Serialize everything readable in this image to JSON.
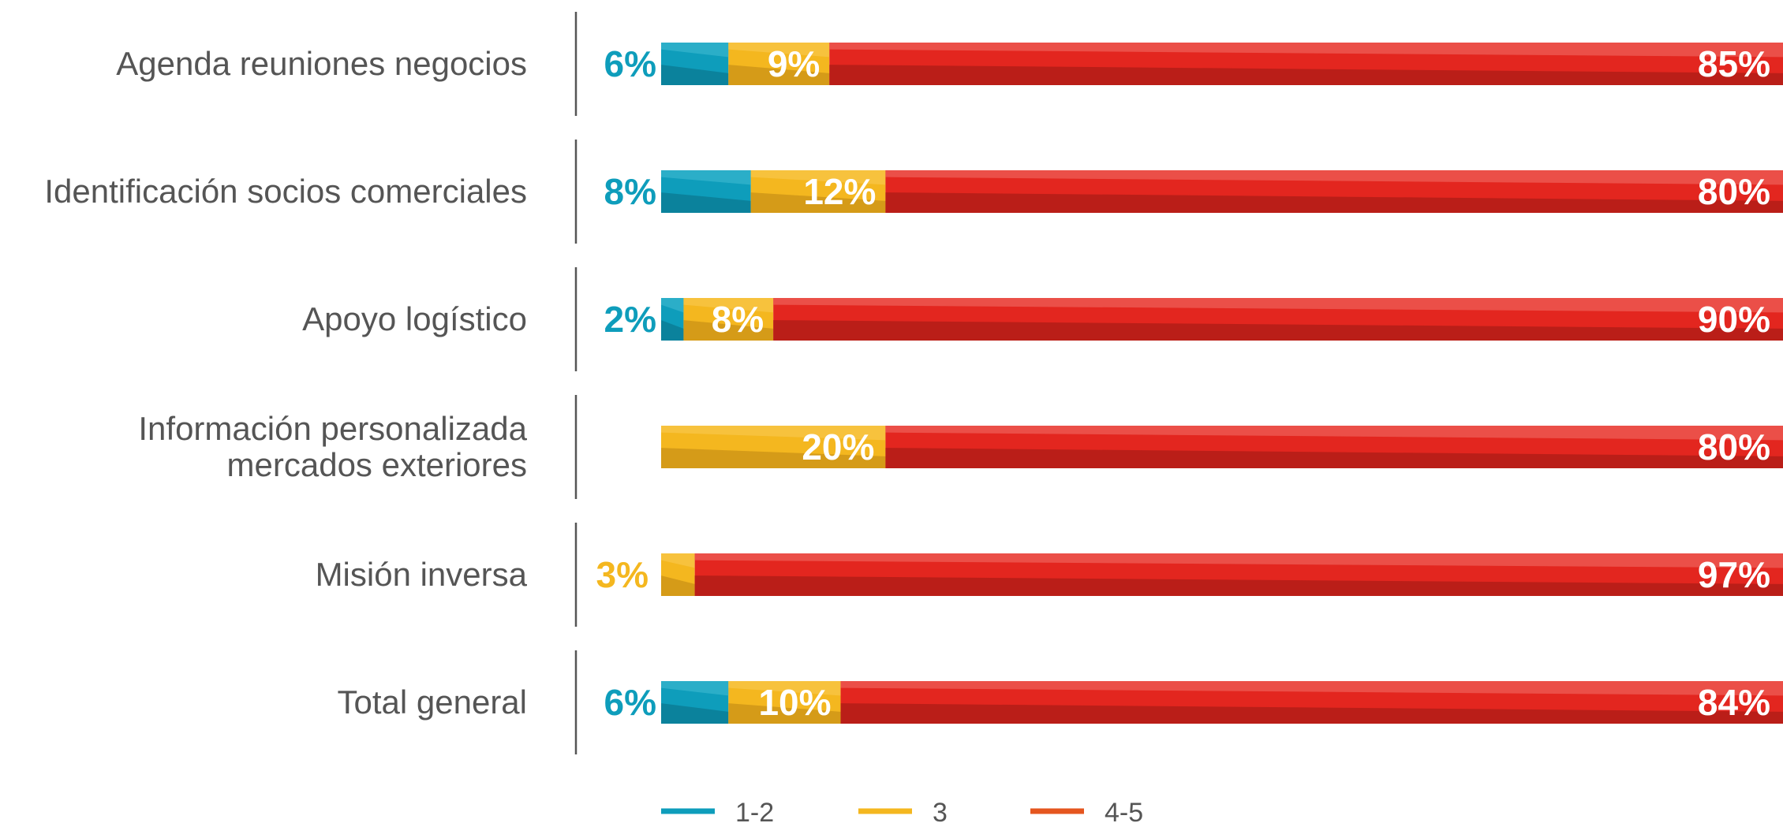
{
  "chart_data": {
    "type": "bar",
    "orientation": "horizontal",
    "stacked": true,
    "normalized": true,
    "title": "",
    "xlabel": "",
    "ylabel": "",
    "xlim": [
      0,
      100
    ],
    "categories": [
      [
        "Agenda reuniones negocios"
      ],
      [
        "Identificación socios comerciales"
      ],
      [
        "Apoyo logístico"
      ],
      [
        "Información personalizada",
        "mercados exteriores"
      ],
      [
        "Misión inversa"
      ],
      [
        "Total general"
      ]
    ],
    "series": [
      {
        "name": "1-2",
        "color": "#0e9dbb",
        "values": [
          6,
          8,
          2,
          0,
          0,
          6
        ],
        "labels": [
          "6%",
          "8%",
          "2%",
          "",
          "",
          "6%"
        ]
      },
      {
        "name": "3",
        "color": "#f4b71f",
        "values": [
          9,
          12,
          8,
          20,
          3,
          10
        ],
        "labels": [
          "9%",
          "12%",
          "8%",
          "20%",
          "3%",
          "10%"
        ]
      },
      {
        "name": "4-5",
        "color": "#e3261f",
        "values": [
          85,
          80,
          90,
          80,
          97,
          84
        ],
        "labels": [
          "85%",
          "80%",
          "90%",
          "80%",
          "97%",
          "84%"
        ]
      }
    ],
    "legend_position": "bottom",
    "legend": [
      {
        "label": "1-2",
        "color": "#0e9dbb"
      },
      {
        "label": "3",
        "color": "#f4b71f"
      },
      {
        "label": "4-5",
        "color": "#e5561f"
      }
    ],
    "grid": false
  }
}
